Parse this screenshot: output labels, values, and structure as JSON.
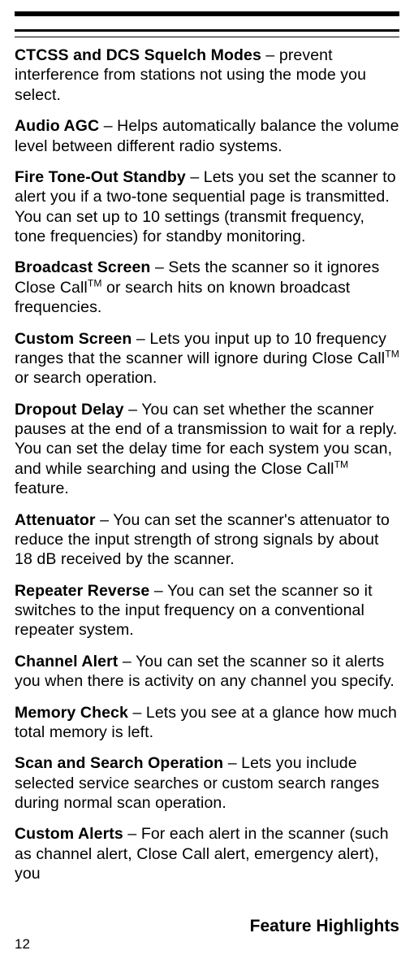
{
  "features": [
    {
      "title": "CTCSS and DCS Squelch Modes",
      "body": " – prevent interference from stations not using the mode you select."
    },
    {
      "title": "Audio AGC",
      "body": " – Helps automatically balance the volume level between different radio systems."
    },
    {
      "title": "Fire Tone-Out Standby",
      "body": " – Lets you set the scanner to alert you if a two-tone sequential page is transmitted. You can set up to 10 settings (transmit frequency, tone frequencies) for standby monitoring."
    },
    {
      "title": "Broadcast Screen",
      "body_pre": " – Sets the scanner so it ignores Close Call",
      "sup": "TM",
      "body_post": " or search hits on known broadcast frequencies."
    },
    {
      "title": "Custom Screen",
      "body_pre": " – Lets you input up to 10 frequency ranges that the scanner will ignore during Close Call",
      "sup": "TM",
      "body_post": " or search operation."
    },
    {
      "title": "Dropout Delay",
      "body_pre": " – You can set whether the scanner pauses at the end of a transmission to wait for a reply. You can set the delay time for each system you scan, and while searching and using the Close Call",
      "sup": "TM",
      "body_post": " feature."
    },
    {
      "title": "Attenuator",
      "body": " – You can set the scanner's attenuator to reduce the input strength of strong signals by about 18 dB received by the scanner."
    },
    {
      "title": "Repeater Reverse",
      "body": " – You can set the scanner so it switches to the input frequency on a conventional repeater system."
    },
    {
      "title": "Channel Alert",
      "body": " – You can set the scanner so it alerts you when there is activity on any channel you specify."
    },
    {
      "title": "Memory Check",
      "body": " – Lets you see at a glance how much total memory is left."
    },
    {
      "title": "Scan and Search Operation",
      "body": " – Lets you include selected service searches or custom search ranges during normal scan operation."
    },
    {
      "title": "Custom Alerts",
      "body": " – For each alert in the scanner (such as channel alert, Close Call alert, emergency alert), you"
    }
  ],
  "footer": "Feature Highlights",
  "page_number": "12"
}
